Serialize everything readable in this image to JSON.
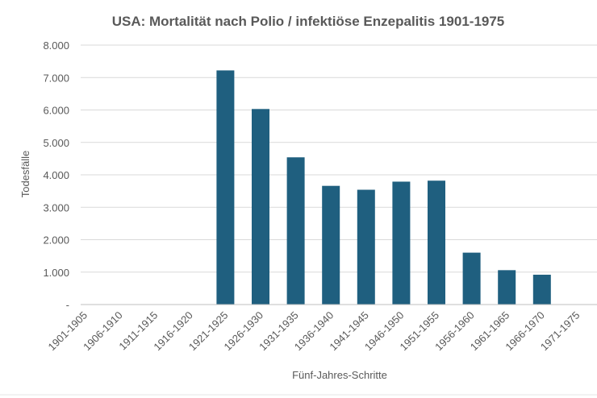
{
  "chart_data": {
    "type": "bar",
    "title": "USA: Mortalität nach Polio / infektiöse Enzepalitis 1901-1975",
    "xlabel": "Fünf-Jahres-Schritte",
    "ylabel": "Todesfälle",
    "categories": [
      "1901-1905",
      "1906-1910",
      "1911-1915",
      "1916-1920",
      "1921-1925",
      "1926-1930",
      "1931-1935",
      "1936-1940",
      "1941-1945",
      "1946-1950",
      "1951-1955",
      "1956-1960",
      "1961-1965",
      "1966-1970",
      "1971-1975"
    ],
    "values": [
      0,
      0,
      0,
      0,
      7220,
      6030,
      4540,
      3660,
      3540,
      3790,
      3820,
      1600,
      1060,
      920,
      0
    ],
    "ylim": [
      0,
      8000
    ],
    "yticks": [
      0,
      1000,
      2000,
      3000,
      4000,
      5000,
      6000,
      7000,
      8000
    ],
    "ytick_labels": [
      "-",
      "1.000",
      "2.000",
      "3.000",
      "4.000",
      "5.000",
      "6.000",
      "7.000",
      "8.000"
    ],
    "bar_color": "#1f5f7f",
    "grid": true,
    "legend": "none"
  }
}
